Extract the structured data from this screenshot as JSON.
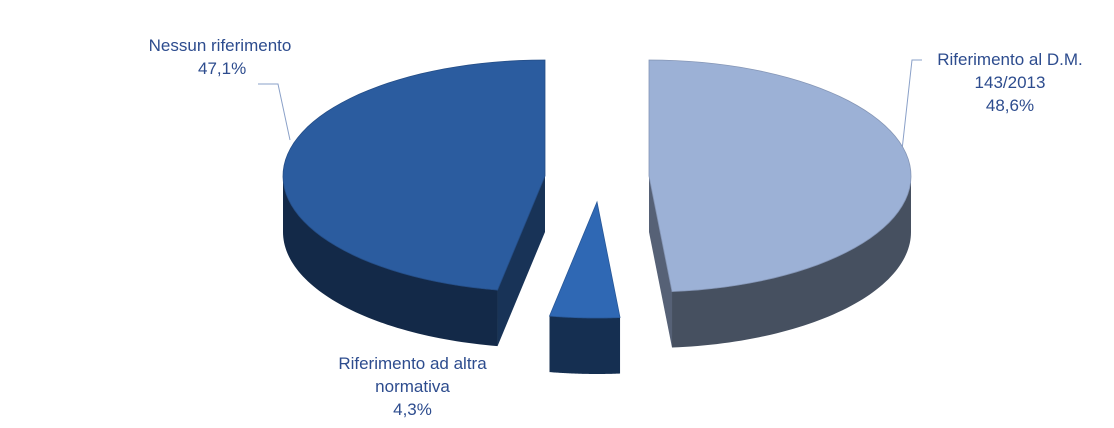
{
  "chart_data": {
    "type": "pie",
    "categories": [
      "Riferimento al D.M. 143/2013",
      "Riferimento ad altra normativa",
      "Nessun riferimento"
    ],
    "values": [
      48.6,
      4.3,
      47.1
    ],
    "value_labels": [
      "48,6%",
      "4,3%",
      "47,1%"
    ],
    "colors": [
      "#9cb1d6",
      "#2f68b4",
      "#2b5c9f"
    ]
  }
}
